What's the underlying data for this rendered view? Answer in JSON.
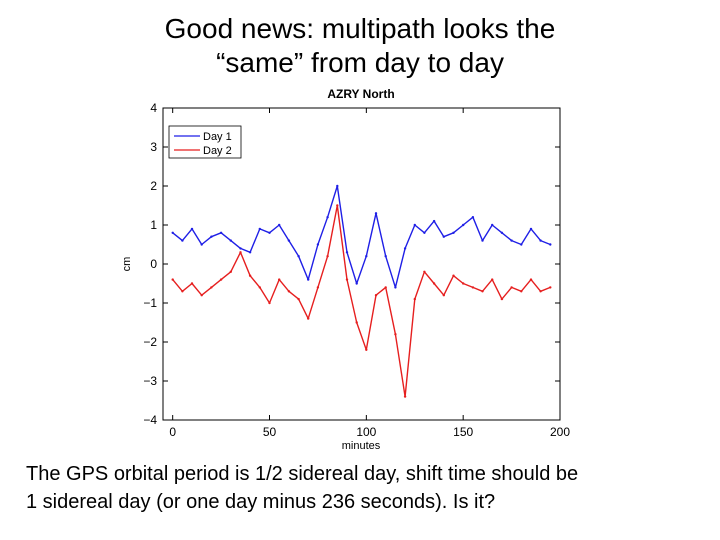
{
  "slide": {
    "title_line1": "Good news: multipath looks the",
    "title_line2": "“same” from day to day",
    "caption_line1": "The GPS orbital period is 1/2 sidereal day, shift time should be",
    "caption_line2": "1 sidereal day (or one day minus 236 seconds).  Is it?"
  },
  "chart_data": {
    "type": "line",
    "title": "AZRY North",
    "xlabel": "minutes",
    "ylabel": "cm",
    "xlim": [
      -5,
      200
    ],
    "ylim": [
      -4,
      4
    ],
    "xticks": [
      0,
      50,
      100,
      150,
      200
    ],
    "yticks": [
      -4,
      -3,
      -2,
      -1,
      0,
      1,
      2,
      3,
      4
    ],
    "xtick_labels": [
      "0",
      "50",
      "100",
      "150",
      "200"
    ],
    "ytick_labels": [
      "−4",
      "−3",
      "−2",
      "−1",
      "0",
      "1",
      "2",
      "3",
      "4"
    ],
    "legend_position": "top-left",
    "series": [
      {
        "name": "Day 1",
        "color": "#1f1fe6",
        "x": [
          0,
          5,
          10,
          15,
          20,
          25,
          30,
          35,
          40,
          45,
          50,
          55,
          60,
          65,
          70,
          75,
          80,
          85,
          90,
          95,
          100,
          105,
          110,
          115,
          120,
          125,
          130,
          135,
          140,
          145,
          150,
          155,
          160,
          165,
          170,
          175,
          180,
          185,
          190,
          195
        ],
        "values": [
          0.8,
          0.6,
          0.9,
          0.5,
          0.7,
          0.8,
          0.6,
          0.4,
          0.3,
          0.9,
          0.8,
          1.0,
          0.6,
          0.2,
          -0.4,
          0.5,
          1.2,
          2.0,
          0.3,
          -0.5,
          0.2,
          1.3,
          0.2,
          -0.6,
          0.4,
          1.0,
          0.8,
          1.1,
          0.7,
          0.8,
          1.0,
          1.2,
          0.6,
          1.0,
          0.8,
          0.6,
          0.5,
          0.9,
          0.6,
          0.5
        ]
      },
      {
        "name": "Day 2",
        "color": "#e61f1f",
        "x": [
          0,
          5,
          10,
          15,
          20,
          25,
          30,
          35,
          40,
          45,
          50,
          55,
          60,
          65,
          70,
          75,
          80,
          85,
          90,
          95,
          100,
          105,
          110,
          115,
          120,
          125,
          130,
          135,
          140,
          145,
          150,
          155,
          160,
          165,
          170,
          175,
          180,
          185,
          190,
          195
        ],
        "values": [
          -0.4,
          -0.7,
          -0.5,
          -0.8,
          -0.6,
          -0.4,
          -0.2,
          0.3,
          -0.3,
          -0.6,
          -1.0,
          -0.4,
          -0.7,
          -0.9,
          -1.4,
          -0.6,
          0.2,
          1.5,
          -0.4,
          -1.5,
          -2.2,
          -0.8,
          -0.6,
          -1.8,
          -3.4,
          -0.9,
          -0.2,
          -0.5,
          -0.8,
          -0.3,
          -0.5,
          -0.6,
          -0.7,
          -0.4,
          -0.9,
          -0.6,
          -0.7,
          -0.4,
          -0.7,
          -0.6
        ]
      }
    ]
  }
}
